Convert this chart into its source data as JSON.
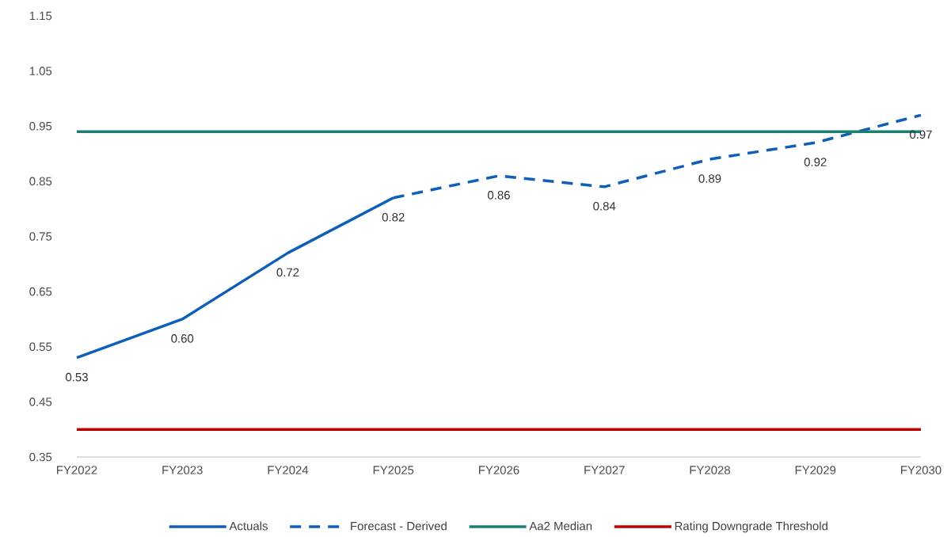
{
  "chart_data": {
    "type": "line",
    "categories": [
      "FY2022",
      "FY2023",
      "FY2024",
      "FY2025",
      "FY2026",
      "FY2027",
      "FY2028",
      "FY2029",
      "FY2030"
    ],
    "series": [
      {
        "name": "Actuals",
        "color": "#0f5fb8",
        "line_style": "solid",
        "values": [
          0.53,
          0.6,
          0.72,
          0.82,
          null,
          null,
          null,
          null,
          null
        ],
        "value_labels": [
          "0.53",
          "0.60",
          "0.72",
          "0.82",
          null,
          null,
          null,
          null,
          null
        ]
      },
      {
        "name": "Forecast - Derived",
        "color": "#0f5fb8",
        "line_style": "dashed",
        "values": [
          null,
          null,
          null,
          0.82,
          0.86,
          0.84,
          0.89,
          0.92,
          0.97
        ],
        "value_labels": [
          null,
          null,
          null,
          null,
          "0.86",
          "0.84",
          "0.89",
          "0.92",
          "0.97"
        ]
      },
      {
        "name": "Aa2 Median",
        "color": "#1a7f6e",
        "line_style": "solid",
        "values": [
          0.94,
          0.94,
          0.94,
          0.94,
          0.94,
          0.94,
          0.94,
          0.94,
          0.94
        ]
      },
      {
        "name": "Rating Downgrade Threshold",
        "color": "#c00000",
        "line_style": "solid",
        "values": [
          0.4,
          0.4,
          0.4,
          0.4,
          0.4,
          0.4,
          0.4,
          0.4,
          0.4
        ]
      }
    ],
    "ylim": [
      0.35,
      1.15
    ],
    "yticks": [
      0.35,
      0.45,
      0.55,
      0.65,
      0.75,
      0.85,
      0.95,
      1.05,
      1.15
    ],
    "grid": false,
    "legend": "bottom"
  }
}
